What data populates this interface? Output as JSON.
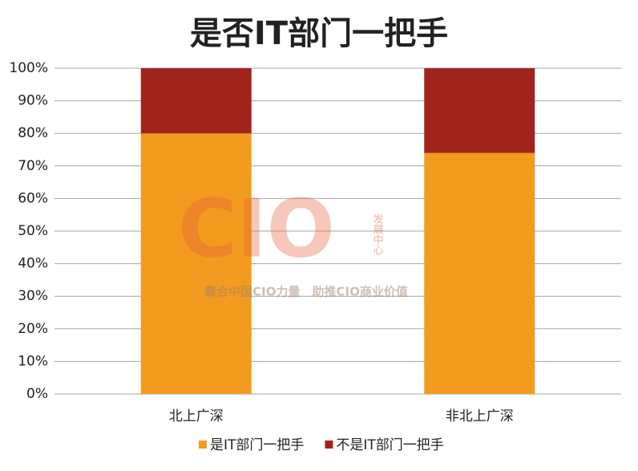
{
  "chart_data": {
    "type": "stacked_bar",
    "title": "是否IT部门一把手",
    "categories": [
      "北上广深",
      "非北上广深"
    ],
    "series": [
      {
        "name": "是IT部门一把手",
        "color": "#f29b1f",
        "values": [
          80,
          74
        ]
      },
      {
        "name": "不是IT部门一把手",
        "color": "#a1241c",
        "values": [
          20,
          26
        ]
      }
    ],
    "ylim": [
      0,
      100
    ],
    "yticks": [
      {
        "value": 0,
        "label": "0%"
      },
      {
        "value": 10,
        "label": "10%"
      },
      {
        "value": 20,
        "label": "20%"
      },
      {
        "value": 30,
        "label": "30%"
      },
      {
        "value": 40,
        "label": "40%"
      },
      {
        "value": 50,
        "label": "50%"
      },
      {
        "value": 60,
        "label": "60%"
      },
      {
        "value": 70,
        "label": "70%"
      },
      {
        "value": 80,
        "label": "80%"
      },
      {
        "value": 90,
        "label": "90%"
      },
      {
        "value": 100,
        "label": "100%"
      }
    ],
    "grid": true,
    "legend": "bottom",
    "watermark": {
      "logo": "CIO",
      "side": "发展中心",
      "slogan": "聚合中国CIO力量　助推CIO商业价值"
    }
  }
}
